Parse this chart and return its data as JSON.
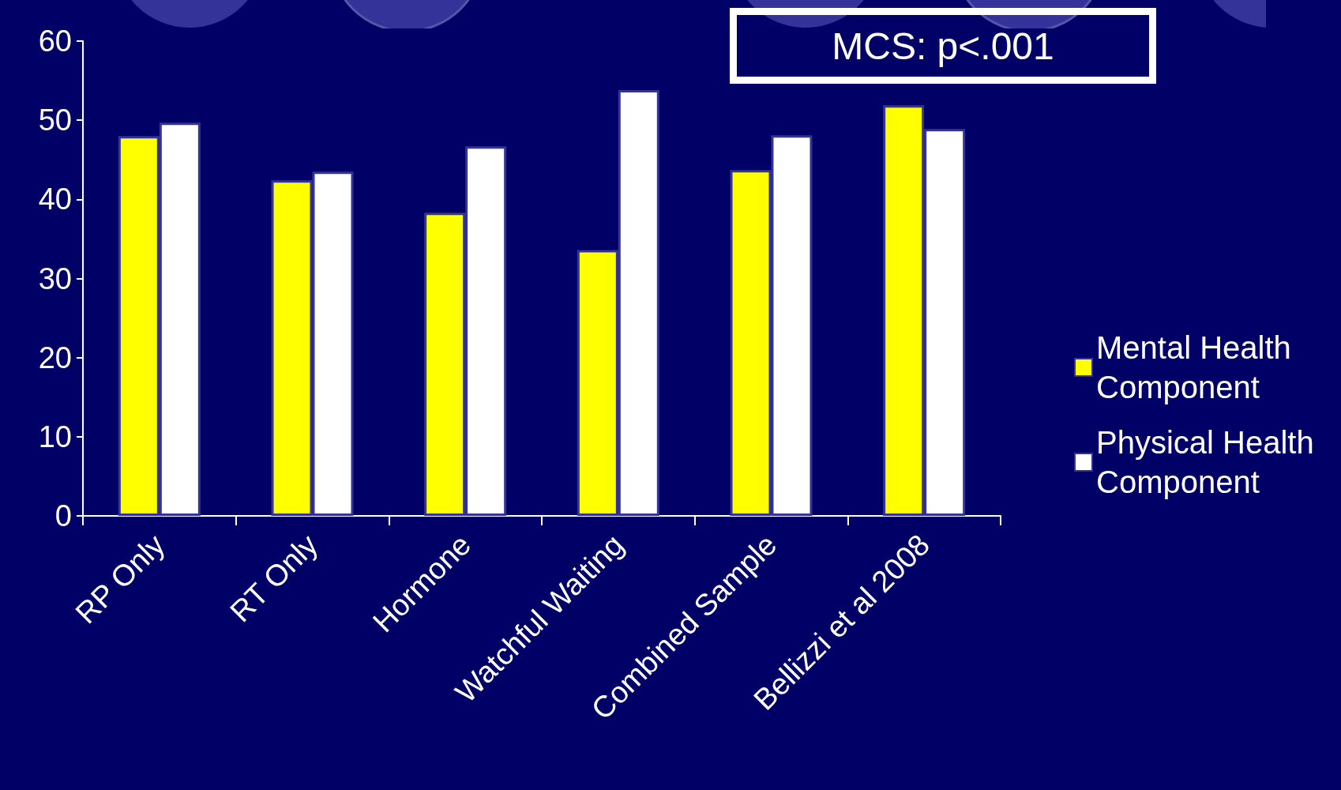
{
  "chart_data": {
    "type": "bar",
    "categories": [
      "RP Only",
      "RT Only",
      "Hormone",
      "Watchful Waiting",
      "Combined Sample",
      "Bellizzi et al 2008"
    ],
    "series": [
      {
        "name": "Mental Health Component",
        "color": "#ffff00",
        "values": [
          48,
          42.4,
          38.3,
          33.6,
          43.7,
          51.9
        ]
      },
      {
        "name": "Physical Health Component",
        "color": "#ffffff",
        "values": [
          49.7,
          43.5,
          46.7,
          53.8,
          48.1,
          48.9
        ]
      }
    ],
    "ylim": [
      0,
      60
    ],
    "yticks": [
      0,
      10,
      20,
      30,
      40,
      50,
      60
    ],
    "grid": false,
    "legend": "right",
    "annotations": [
      "MCS: p<.001"
    ]
  }
}
